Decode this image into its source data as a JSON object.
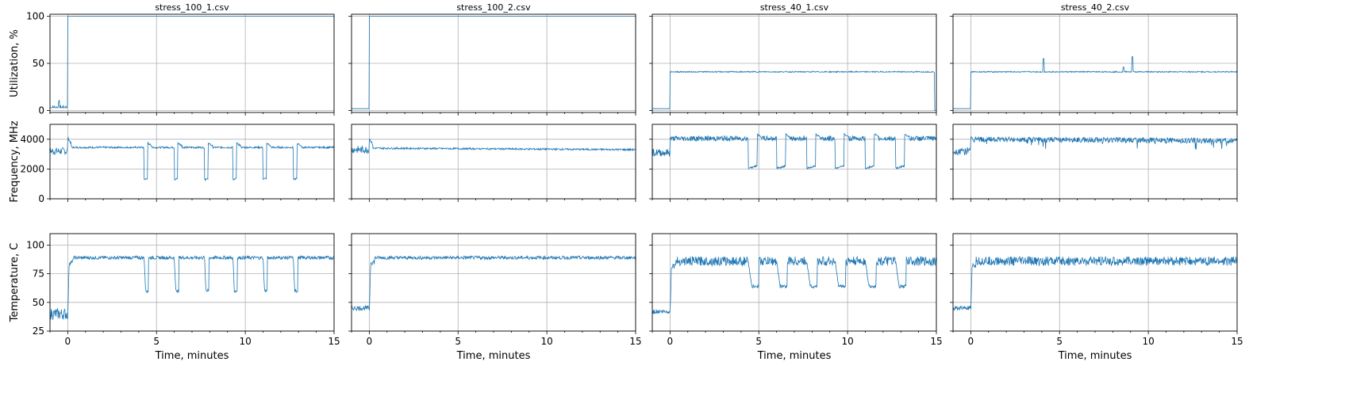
{
  "chart_data": {
    "type": "line",
    "layout": "3x4 grid of small multiples, shared axes",
    "x_axis": {
      "label": "Time, minutes",
      "range": [
        -1,
        15
      ],
      "ticks": [
        0,
        5,
        10,
        15
      ],
      "minor_ticks": "every 1 minute",
      "grid": true
    },
    "series_color": "#1f77b4",
    "columns": [
      "stress_100_1.csv",
      "stress_100_2.csv",
      "stress_40_1.csv",
      "stress_40_2.csv"
    ],
    "rows": [
      {
        "key": "util",
        "ylabel": "Utilization, %",
        "ylim": [
          -2,
          102
        ],
        "ticks": [
          0,
          50,
          100
        ]
      },
      {
        "key": "freq",
        "ylabel": "Frequency, MHz",
        "ylim": [
          0,
          5000
        ],
        "ticks": [
          0,
          2000,
          4000
        ]
      },
      {
        "key": "temp",
        "ylabel": "Temperature, C",
        "ylim": [
          25,
          110
        ],
        "ticks": [
          25,
          50,
          75,
          100
        ]
      }
    ],
    "series_description": {
      "stress_100_1.csv": {
        "util": {
          "idle_before_0": 3,
          "load_from_0": 100
        },
        "freq": {
          "idle": 3200,
          "boost_at_0": 4100,
          "steady": 3450,
          "throttle_level": 1300,
          "throttle_starts": [
            4.3,
            6.0,
            7.7,
            9.3,
            11.0,
            12.7
          ],
          "throttle_duration": 0.2
        },
        "temp": {
          "idle": 40,
          "steady": 89,
          "dip_level": 60,
          "dip_starts": [
            4.3,
            6.0,
            7.7,
            9.3,
            11.0,
            12.7
          ],
          "dip_duration": 0.25
        }
      },
      "stress_100_2.csv": {
        "util": {
          "idle_before_0": 2,
          "load_from_0": 100
        },
        "freq": {
          "idle": 3300,
          "boost_at_0": 4050,
          "steady": 3400,
          "end_level": 3300
        },
        "temp": {
          "idle": 45,
          "steady": 89
        }
      },
      "stress_40_1.csv": {
        "util": {
          "idle_before_0": 2,
          "load_from_0": 41,
          "drop_at_end": 0
        },
        "freq": {
          "idle": 3100,
          "steady": 4050,
          "throttle_level": 2050,
          "throttle_starts": [
            4.4,
            6.0,
            7.7,
            9.3,
            11.0,
            12.7
          ],
          "throttle_duration": 0.5
        },
        "temp": {
          "idle": 42,
          "steady": 86,
          "dip_level": 64,
          "dip_starts": [
            4.4,
            6.0,
            7.7,
            9.3,
            11.0,
            12.7
          ],
          "dip_duration": 0.6
        }
      },
      "stress_40_2.csv": {
        "util": {
          "idle_before_0": 2,
          "load_from_0": 41,
          "spikes": [
            [
              4.1,
              55
            ],
            [
              8.6,
              46
            ],
            [
              9.1,
              57
            ]
          ]
        },
        "freq": {
          "idle": 3200,
          "boost_at_0": 4200,
          "steady": 4000,
          "end_level": 3900
        },
        "temp": {
          "idle": 45,
          "steady": 86
        }
      }
    }
  }
}
